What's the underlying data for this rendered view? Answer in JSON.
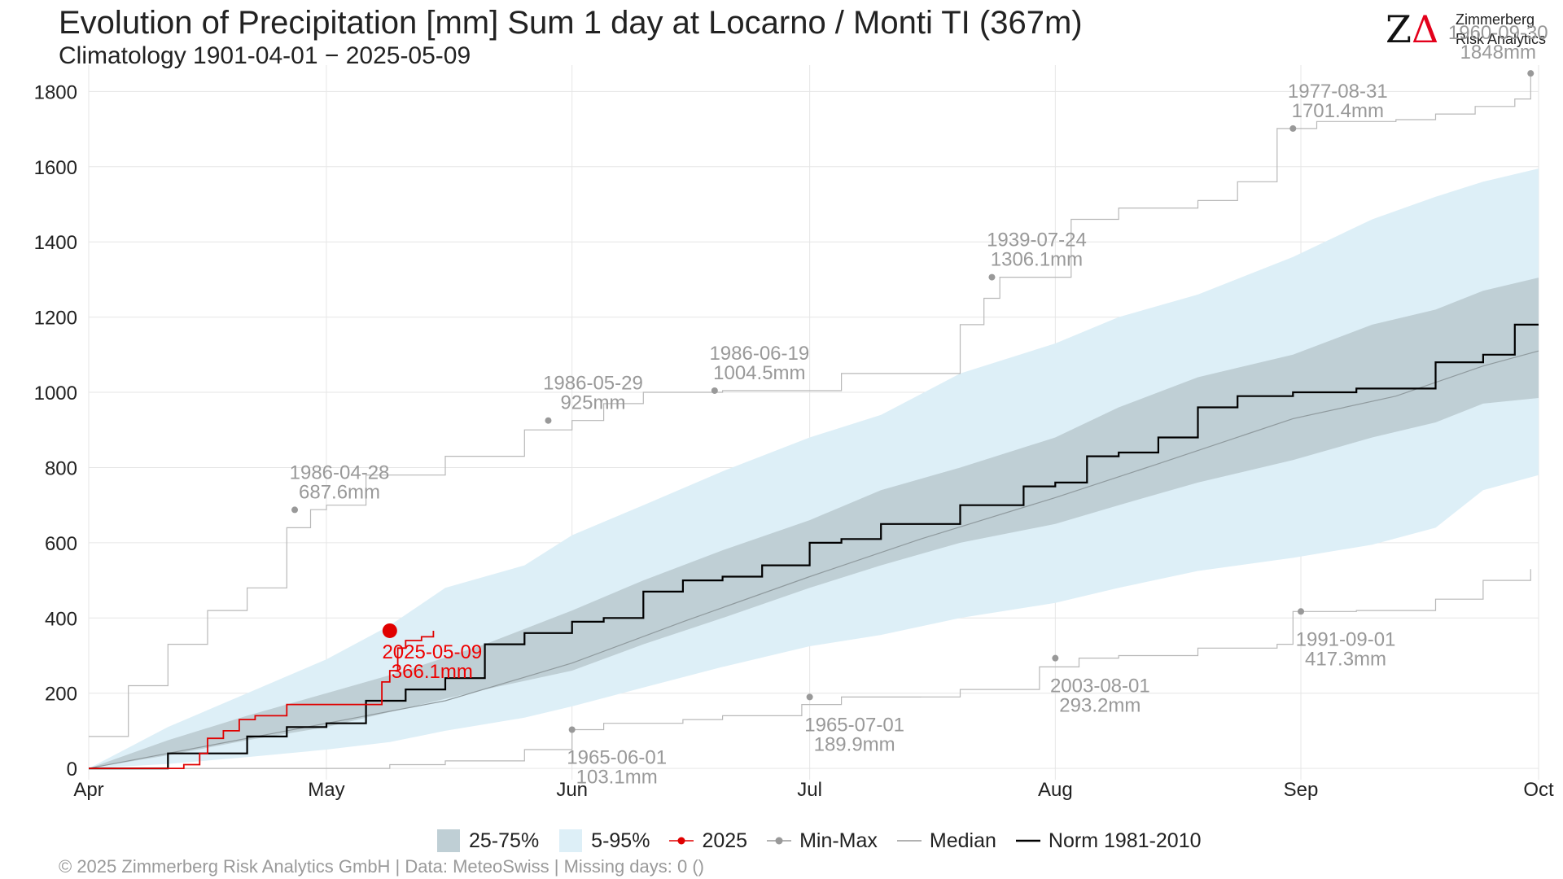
{
  "header": {
    "title": "Evolution of Precipitation [mm] Sum 1 day at Locarno / Monti  TI (367m)",
    "subtitle": "Climatology 1901-04-01 − 2025-05-09"
  },
  "logo": {
    "mark": "ZΔ",
    "line1": "Zimmerberg",
    "line2": "Risk Analytics"
  },
  "legend": {
    "items": [
      {
        "label": "25-75%",
        "color": "#bfcfd5",
        "kind": "box"
      },
      {
        "label": "5-95%",
        "color": "#ddeff7",
        "kind": "box"
      },
      {
        "label": "2025",
        "color": "#e00000",
        "kind": "line-point"
      },
      {
        "label": "Min-Max",
        "color": "#999999",
        "kind": "line-point"
      },
      {
        "label": "Median",
        "color": "#999999",
        "kind": "line"
      },
      {
        "label": "Norm 1981-2010",
        "color": "#000000",
        "kind": "line"
      }
    ]
  },
  "footer": "©  2025 Zimmerberg Risk Analytics GmbH | Data: MeteoSwiss | Missing days: 0 ()",
  "chart_data": {
    "type": "area",
    "title": "Evolution of Precipitation [mm] Sum 1 day at Locarno / Monti  TI (367m)",
    "xlabel": "",
    "ylabel": "",
    "x_ticks": [
      "Apr",
      "May",
      "Jun",
      "Jul",
      "Aug",
      "Sep",
      "Oct"
    ],
    "y_ticks": [
      0,
      200,
      400,
      600,
      800,
      1000,
      1200,
      1400,
      1600,
      1800
    ],
    "xlim": [
      0,
      183
    ],
    "ylim": [
      -30,
      1870
    ],
    "grid": true,
    "legend_position": "bottom",
    "series": [
      {
        "name": "5-95%",
        "kind": "band",
        "x": [
          0,
          10,
          20,
          30,
          38,
          45,
          55,
          61,
          70,
          80,
          91,
          100,
          110,
          122,
          130,
          140,
          152,
          162,
          170,
          176,
          183
        ],
        "lower": [
          0,
          12,
          30,
          50,
          70,
          100,
          135,
          165,
          215,
          270,
          325,
          355,
          400,
          440,
          480,
          525,
          560,
          595,
          640,
          740,
          780
        ],
        "upper": [
          0,
          110,
          200,
          290,
          380,
          480,
          540,
          620,
          700,
          790,
          880,
          940,
          1050,
          1130,
          1200,
          1260,
          1360,
          1460,
          1520,
          1560,
          1595
        ]
      },
      {
        "name": "25-75%",
        "kind": "band",
        "x": [
          0,
          10,
          20,
          30,
          40,
          50,
          61,
          70,
          80,
          91,
          100,
          110,
          122,
          130,
          140,
          152,
          162,
          170,
          176,
          183
        ],
        "lower": [
          0,
          35,
          75,
          110,
          160,
          210,
          260,
          330,
          400,
          480,
          540,
          600,
          650,
          700,
          760,
          820,
          880,
          920,
          970,
          985
        ],
        "upper": [
          0,
          75,
          140,
          200,
          260,
          330,
          420,
          500,
          580,
          660,
          740,
          800,
          880,
          960,
          1040,
          1100,
          1180,
          1220,
          1270,
          1305
        ]
      },
      {
        "name": "Median",
        "kind": "line",
        "x": [
          0,
          15,
          30,
          45,
          61,
          75,
          91,
          105,
          122,
          135,
          152,
          165,
          176,
          183
        ],
        "y": [
          0,
          60,
          120,
          180,
          280,
          390,
          510,
          610,
          720,
          810,
          930,
          990,
          1070,
          1110
        ]
      },
      {
        "name": "Norm 1981-2010",
        "kind": "step",
        "x": [
          0,
          10,
          20,
          25,
          30,
          35,
          40,
          45,
          50,
          55,
          61,
          65,
          70,
          75,
          80,
          85,
          91,
          95,
          100,
          110,
          118,
          122,
          126,
          130,
          135,
          140,
          145,
          152,
          160,
          170,
          176,
          180,
          183
        ],
        "y": [
          0,
          40,
          85,
          110,
          120,
          180,
          210,
          240,
          330,
          360,
          390,
          400,
          470,
          500,
          510,
          540,
          600,
          610,
          650,
          700,
          750,
          760,
          830,
          840,
          880,
          960,
          990,
          1000,
          1010,
          1080,
          1100,
          1180,
          1180
        ]
      },
      {
        "name": "Min-Max",
        "kind": "step",
        "x": [
          0,
          5,
          10,
          15,
          20,
          25,
          28,
          30,
          35,
          45,
          55,
          61,
          65,
          70,
          80,
          90,
          95,
          110,
          113,
          115,
          120,
          124,
          130,
          140,
          145,
          150,
          155,
          158,
          165,
          170,
          175,
          180,
          182
        ],
        "y": [
          85,
          220,
          330,
          420,
          480,
          640,
          688,
          700,
          780,
          830,
          900,
          925,
          970,
          1000,
          1004.5,
          1004.5,
          1050,
          1180,
          1250,
          1306.1,
          1306.1,
          1460,
          1490,
          1510,
          1560,
          1701.4,
          1720,
          1720,
          1725,
          1740,
          1760,
          1780,
          1848
        ]
      },
      {
        "name": "Min",
        "kind": "step",
        "x": [
          0,
          30,
          38,
          45,
          55,
          61,
          65,
          75,
          80,
          90,
          95,
          105,
          110,
          120,
          125,
          130,
          140,
          150,
          152,
          160,
          170,
          176,
          182
        ],
        "y": [
          0,
          0,
          10,
          20,
          50,
          103.1,
          120,
          130,
          140,
          170,
          189.9,
          190,
          210,
          270,
          293.2,
          300,
          320,
          330,
          417.3,
          420,
          450,
          500,
          530
        ]
      },
      {
        "name": "2025",
        "kind": "step",
        "x": [
          0,
          10,
          12,
          14,
          15,
          17,
          19,
          21,
          25,
          30,
          36,
          37,
          38,
          39,
          40,
          41,
          42,
          43.5
        ],
        "y": [
          0,
          0,
          10,
          40,
          80,
          100,
          130,
          140,
          170,
          170,
          170,
          230,
          260,
          320,
          340,
          340,
          350,
          366.1
        ]
      }
    ],
    "annotations": [
      {
        "x": 26,
        "y": 687.6,
        "date": "1986-04-28",
        "value": "687.6mm",
        "color": "#999999"
      },
      {
        "x": 58,
        "y": 925,
        "date": "1986-05-29",
        "value": "925mm",
        "color": "#999999"
      },
      {
        "x": 79,
        "y": 1004.5,
        "date": "1986-06-19",
        "value": "1004.5mm",
        "color": "#999999"
      },
      {
        "x": 114,
        "y": 1306.1,
        "date": "1939-07-24",
        "value": "1306.1mm",
        "color": "#999999"
      },
      {
        "x": 152,
        "y": 1701.4,
        "date": "1977-08-31",
        "value": "1701.4mm",
        "color": "#999999"
      },
      {
        "x": 182,
        "y": 1848,
        "date": "1960-09-30",
        "value": "1848mm",
        "color": "#999999"
      },
      {
        "x": 61,
        "y": 103.1,
        "date": "1965-06-01",
        "value": "103.1mm",
        "color": "#999999"
      },
      {
        "x": 91,
        "y": 189.9,
        "date": "1965-07-01",
        "value": "189.9mm",
        "color": "#999999"
      },
      {
        "x": 122,
        "y": 293.2,
        "date": "2003-08-01",
        "value": "293.2mm",
        "color": "#999999"
      },
      {
        "x": 153,
        "y": 417.3,
        "date": "1991-09-01",
        "value": "417.3mm",
        "color": "#999999"
      },
      {
        "x": 38,
        "y": 366.1,
        "date": "2025-05-09",
        "value": "366.1mm",
        "color": "#e00000"
      }
    ]
  }
}
